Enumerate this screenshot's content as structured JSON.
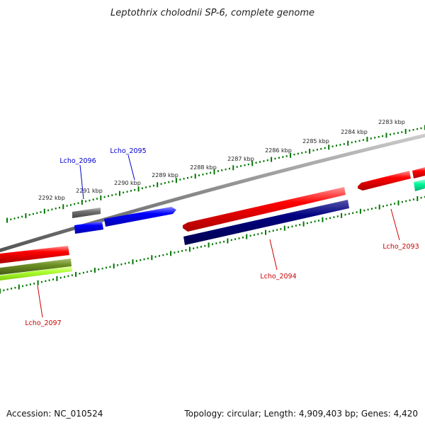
{
  "title": "Leptothrix cholodnii SP-6, complete genome",
  "tick_labels": [
    "2283 kbp",
    "2284 kbp",
    "2285 kbp",
    "2286 kbp",
    "2287 kbp",
    "2288 kbp",
    "2289 kbp",
    "2290 kbp",
    "2291 kbp",
    "2292 kbp"
  ],
  "gene_labels": {
    "lcho_2096": "Lcho_2096",
    "lcho_2095": "Lcho_2095",
    "lcho_2094": "Lcho_2094",
    "lcho_2093": "Lcho_2093",
    "lcho_2097": "Lcho_2097"
  },
  "colors": {
    "forward_gene": "#ff0000",
    "reverse_gene": "#ff0000",
    "blue_gene": "#0000ff",
    "navy_gene": "#000080",
    "gray_gene": "#707070",
    "olive_gene": "#6b8e23",
    "lime_gene": "#adff2f",
    "teal_gene": "#00fa9a",
    "ticks": "#007700",
    "label_blue": "#0000cc",
    "label_red": "#cc0000"
  },
  "footer": {
    "accession": "Accession: NC_010524",
    "summary": "Topology: circular; Length: 4,909,403 bp; Genes: 4,420"
  }
}
